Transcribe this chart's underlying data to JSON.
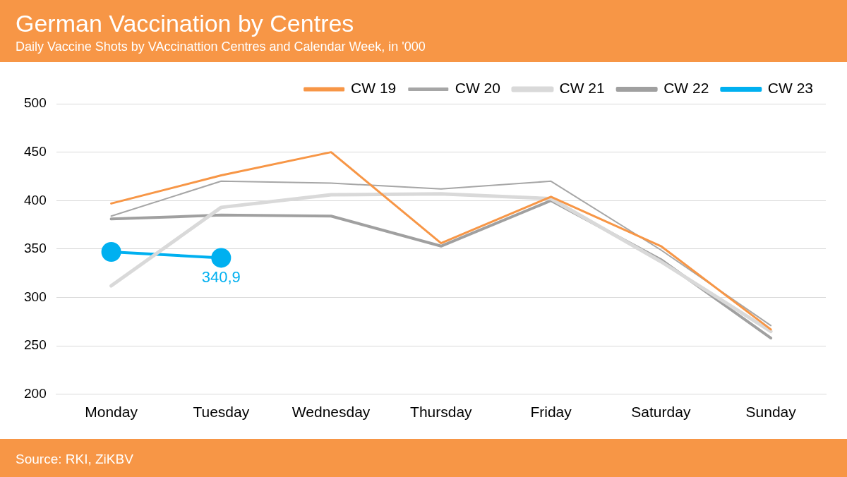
{
  "chart_data": {
    "type": "line",
    "title": "German Vaccination by Centres",
    "subtitle": "Daily Vaccine Shots by VAccinattion Centres and Calendar Week, in '000",
    "annotations": [
      "Source: RKI, ZiKBV"
    ],
    "categories": [
      "Monday",
      "Tuesday",
      "Wednesday",
      "Thursday",
      "Friday",
      "Saturday",
      "Sunday"
    ],
    "series": [
      {
        "name": "CW 19",
        "color": "#f79646",
        "values": [
          397,
          426,
          450,
          356,
          404,
          353,
          267
        ]
      },
      {
        "name": "CW 20",
        "color": "#a6a6a6",
        "values": [
          384,
          420,
          418,
          412,
          420,
          349,
          271
        ]
      },
      {
        "name": "CW 21",
        "color": "#d9d9d9",
        "values": [
          312,
          393,
          406,
          407,
          402,
          337,
          265
        ]
      },
      {
        "name": "CW 22",
        "color": "#a0a0a0",
        "values": [
          381,
          385,
          384,
          353,
          400,
          339,
          258
        ]
      },
      {
        "name": "CW 23",
        "color": "#00b0f0",
        "marker": "circle",
        "values": [
          347,
          340.9,
          null,
          null,
          null,
          null,
          null
        ],
        "value_labels": [
          null,
          "340,9",
          null,
          null,
          null,
          null,
          null
        ]
      }
    ],
    "ylim": [
      200,
      500
    ],
    "yticks": [
      200,
      250,
      300,
      350,
      400,
      450,
      500
    ],
    "grid": "y",
    "legend": "top right",
    "marker": "none",
    "line_style": "solid"
  }
}
